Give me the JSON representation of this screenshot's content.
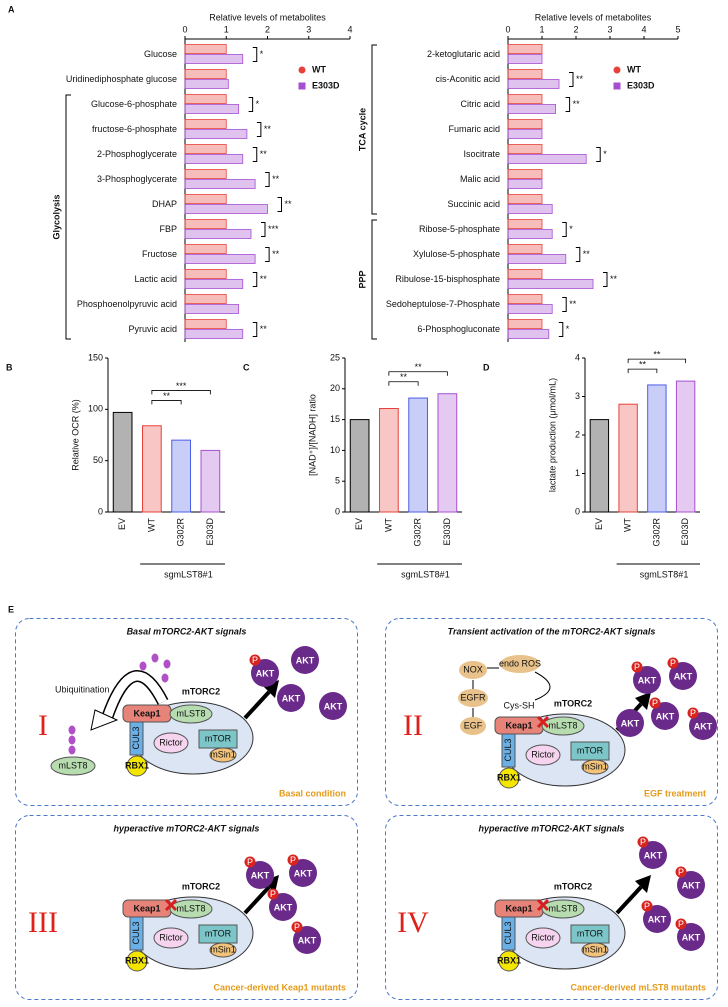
{
  "chart_data": [
    {
      "type": "hbar",
      "panel_label": "A",
      "title": "Relative levels of metabolites",
      "categories": [
        "Glucose",
        "Uridinediphosphate glucose",
        "Glucose-6-phosphate",
        "fructose-6-phosphate",
        "2-Phosphoglycerate",
        "3-Phosphoglycerate",
        "DHAP",
        "FBP",
        "Fructose",
        "Lactic acid",
        "Phosphoenolpyruvic acid",
        "Pyruvic acid"
      ],
      "series": [
        {
          "name": "WT",
          "color": "#e8413c",
          "marker": "circle",
          "values": [
            1,
            1,
            1,
            1,
            1,
            1,
            1,
            1,
            1,
            1,
            1,
            1
          ]
        },
        {
          "name": "E303D",
          "color": "#a64fd1",
          "marker": "square",
          "values": [
            1.4,
            1.05,
            1.3,
            1.5,
            1.4,
            1.7,
            2.0,
            1.6,
            1.7,
            1.4,
            1.3,
            1.4
          ]
        }
      ],
      "significance": [
        "*",
        null,
        "*",
        "**",
        "**",
        "**",
        "**",
        "***",
        "**",
        "**",
        null,
        "**"
      ],
      "groups": [
        {
          "name": "Glycolysis",
          "span": [
            2,
            11
          ]
        }
      ],
      "xlim": [
        0,
        4
      ],
      "xticks": [
        0,
        1,
        2,
        3,
        4
      ],
      "legend": "top-right"
    },
    {
      "type": "hbar",
      "title": "Relative levels of metabolites",
      "categories": [
        "2-ketoglutaric acid",
        "cis-Aconitic acid",
        "Citric acid",
        "Fumaric acid",
        "Isocitrate",
        "Malic acid",
        "Succinic acid",
        "Ribose-5-phosphate",
        "Xylulose-5-phosphate",
        "Ribulose-15-bisphosphate",
        "Sedoheptulose-7-Phosphate",
        "6-Phosphogluconate"
      ],
      "series": [
        {
          "name": "WT",
          "color": "#e8413c",
          "marker": "circle",
          "values": [
            1,
            1,
            1,
            1,
            1,
            1,
            1,
            1,
            1,
            1,
            1,
            1
          ]
        },
        {
          "name": "E303D",
          "color": "#a64fd1",
          "marker": "square",
          "values": [
            1.0,
            1.5,
            1.4,
            1.0,
            2.3,
            1.0,
            1.3,
            1.3,
            1.7,
            2.5,
            1.3,
            1.2
          ]
        }
      ],
      "significance": [
        null,
        "**",
        "**",
        null,
        "*",
        null,
        null,
        "*",
        "**",
        "**",
        "**",
        "*"
      ],
      "groups": [
        {
          "name": "TCA cycle",
          "span": [
            0,
            6
          ]
        },
        {
          "name": "PPP",
          "span": [
            7,
            11
          ]
        }
      ],
      "xlim": [
        0,
        5
      ],
      "xticks": [
        0,
        1,
        2,
        3,
        4,
        5
      ],
      "legend": "top-right"
    },
    {
      "type": "bar",
      "panel_label": "B",
      "ylabel": "Relative OCR (%)",
      "categories": [
        "EV",
        "WT",
        "G302R",
        "E303D"
      ],
      "values": [
        97,
        84,
        70,
        60
      ],
      "colors": [
        "#000000",
        "#e8413c",
        "#4b5ee8",
        "#a64fd1"
      ],
      "ylim": [
        0,
        150
      ],
      "yticks": [
        0,
        50,
        100,
        150
      ],
      "group_label": "sgmLST8#1",
      "comparisons": [
        {
          "pair": [
            1,
            2
          ],
          "label": "**"
        },
        {
          "pair": [
            1,
            3
          ],
          "label": "***"
        }
      ]
    },
    {
      "type": "bar",
      "panel_label": "C",
      "ylabel": "[NAD⁺]/[NADH] ratio",
      "categories": [
        "EV",
        "WT",
        "G302R",
        "E303D"
      ],
      "values": [
        15,
        16.8,
        18.5,
        19.2
      ],
      "colors": [
        "#000000",
        "#e8413c",
        "#4b5ee8",
        "#a64fd1"
      ],
      "ylim": [
        0,
        25
      ],
      "yticks": [
        0,
        5,
        10,
        15,
        20,
        25
      ],
      "group_label": "sgmLST8#1",
      "comparisons": [
        {
          "pair": [
            1,
            2
          ],
          "label": "**"
        },
        {
          "pair": [
            1,
            3
          ],
          "label": "**"
        }
      ]
    },
    {
      "type": "bar",
      "panel_label": "D",
      "ylabel": "lactate production (μmol/mL)",
      "categories": [
        "EV",
        "WT",
        "G302R",
        "E303D"
      ],
      "values": [
        2.4,
        2.8,
        3.3,
        3.4
      ],
      "colors": [
        "#000000",
        "#e8413c",
        "#4b5ee8",
        "#a64fd1"
      ],
      "ylim": [
        0,
        4
      ],
      "yticks": [
        0,
        1,
        2,
        3,
        4
      ],
      "group_label": "sgmLST8#1",
      "comparisons": [
        {
          "pair": [
            1,
            2
          ],
          "label": "**"
        },
        {
          "pair": [
            1,
            3
          ],
          "label": "**"
        }
      ]
    }
  ],
  "diagram": {
    "label": "E",
    "panels": [
      {
        "numeral": "I",
        "title": "Basal mTORC2-AKT signals",
        "condition": "Basal condition",
        "complex": "mTORC2",
        "keap1": "Keap1",
        "cul3": "CUL3",
        "rbx1": "RBX1",
        "mlst8": "mLST8",
        "rictor": "Rictor",
        "mtor": "mTOR",
        "msin1": "mSin1",
        "akt": [
          "AKT",
          "AKT",
          "AKT",
          "AKT"
        ],
        "phospho": [
          "P"
        ],
        "blocked": false,
        "ubiquitination": "Ubiquitination",
        "released_mlst8": "mLST8"
      },
      {
        "numeral": "II",
        "title": "Transient activation of the mTORC2-AKT signals",
        "condition": "EGF treatment",
        "complex": "mTORC2",
        "keap1": "Keap1",
        "cul3": "CUL3",
        "rbx1": "RBX1",
        "mlst8": "mLST8",
        "rictor": "Rictor",
        "mtor": "mTOR",
        "msin1": "mSin1",
        "akt": [
          "AKT",
          "AKT",
          "AKT",
          "AKT",
          "AKT"
        ],
        "phospho": [
          "P",
          "P",
          "P",
          "P"
        ],
        "blocked": true,
        "egf": "EGF",
        "egfr": "EGFR",
        "nox": "NOX",
        "ros": "endo ROS",
        "cys": "Cys-SH"
      },
      {
        "numeral": "III",
        "title": "hyperactive mTORC2-AKT signals",
        "condition": "Cancer-derived Keap1 mutants",
        "complex": "mTORC2",
        "keap1": "Keap1",
        "cul3": "CUL3",
        "rbx1": "RBX1",
        "mlst8": "mLST8",
        "rictor": "Rictor",
        "mtor": "mTOR",
        "msin1": "mSin1",
        "akt": [
          "AKT",
          "AKT",
          "AKT",
          "AKT"
        ],
        "phospho": [
          "P",
          "P",
          "P",
          "P"
        ],
        "blocked": true
      },
      {
        "numeral": "IV",
        "title": "hyperactive mTORC2-AKT signals",
        "condition": "Cancer-derived mLST8 mutants",
        "complex": "mTORC2",
        "keap1": "Keap1",
        "cul3": "CUL3",
        "rbx1": "RBX1",
        "mlst8": "mLST8",
        "rictor": "Rictor",
        "mtor": "mTOR",
        "msin1": "mSin1",
        "akt": [
          "AKT",
          "AKT",
          "AKT",
          "AKT"
        ],
        "phospho": [
          "P",
          "P",
          "P",
          "P"
        ],
        "blocked": true
      }
    ]
  }
}
